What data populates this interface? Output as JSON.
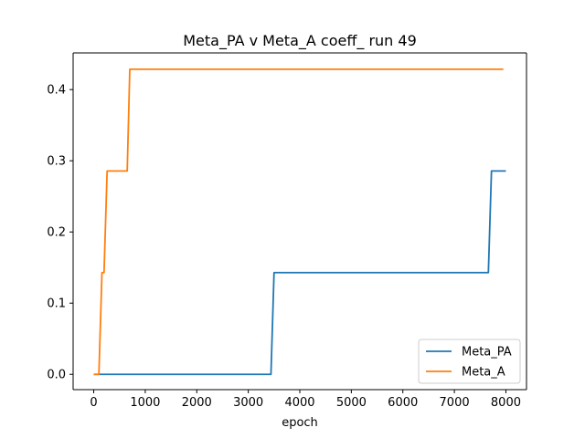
{
  "chart_data": {
    "type": "line",
    "title": "Meta_PA v Meta_A coeff_ run 49",
    "xlabel": "epoch",
    "ylabel": "",
    "xlim": [
      -400,
      8400
    ],
    "ylim": [
      -0.0215,
      0.4515
    ],
    "xticks": [
      0,
      1000,
      2000,
      3000,
      4000,
      5000,
      6000,
      7000,
      8000
    ],
    "yticks": [
      0.0,
      0.1,
      0.2,
      0.3,
      0.4
    ],
    "xtick_labels": [
      "0",
      "1000",
      "2000",
      "3000",
      "4000",
      "5000",
      "6000",
      "7000",
      "8000"
    ],
    "ytick_labels": [
      "0.0",
      "0.1",
      "0.2",
      "0.3",
      "0.4"
    ],
    "grid": false,
    "legend_position": "lower-right",
    "series": [
      {
        "name": "Meta_PA",
        "color": "#1f77b4",
        "x": [
          0,
          3440,
          3500,
          7660,
          7720,
          8000
        ],
        "y": [
          0.0,
          0.0,
          0.1429,
          0.1429,
          0.2857,
          0.2857
        ]
      },
      {
        "name": "Meta_A",
        "color": "#ff7f0e",
        "x": [
          0,
          100,
          160,
          200,
          260,
          650,
          700,
          7950
        ],
        "y": [
          0.0,
          0.0,
          0.1429,
          0.1429,
          0.2857,
          0.2857,
          0.4286,
          0.4286
        ]
      }
    ]
  }
}
